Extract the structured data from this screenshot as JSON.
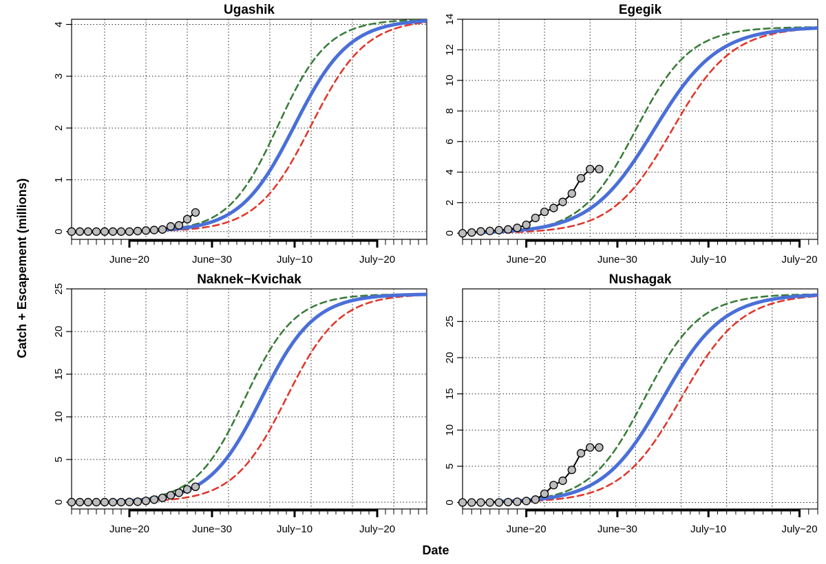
{
  "figure": {
    "ylabel": "Catch + Escapement (millions)",
    "xlabel": "Date"
  },
  "chart_data": [
    {
      "type": "line",
      "title": "Ugashik",
      "x_ticks": [
        "June−20",
        "June−30",
        "July−10",
        "July−20"
      ],
      "x_tick_dates": [
        "2023-06-20",
        "2023-06-30",
        "2023-07-10",
        "2023-07-20"
      ],
      "xlim": [
        "2023-06-13",
        "2023-07-26"
      ],
      "ylim": [
        -0.15,
        4.1
      ],
      "y_ticks": [
        0,
        1,
        2,
        3,
        4
      ],
      "grid": true,
      "curves": [
        {
          "color": "#4a6fd8",
          "style": "solid",
          "midpoint": "2023-07-10",
          "spread": 3.3,
          "final": 4.1
        },
        {
          "color": "#3a7d3a",
          "style": "dashed",
          "midpoint": "2023-07-08",
          "spread": 3.0,
          "final": 4.1
        },
        {
          "color": "#e0382c",
          "style": "dashed",
          "midpoint": "2023-07-12",
          "spread": 3.3,
          "final": 4.1
        }
      ],
      "observed": {
        "x": [
          "2023-06-13",
          "2023-06-14",
          "2023-06-15",
          "2023-06-16",
          "2023-06-17",
          "2023-06-18",
          "2023-06-19",
          "2023-06-20",
          "2023-06-21",
          "2023-06-22",
          "2023-06-23",
          "2023-06-24",
          "2023-06-25",
          "2023-06-26",
          "2023-06-27",
          "2023-06-28"
        ],
        "y": [
          0,
          0,
          0,
          0,
          0,
          0,
          0,
          0,
          0.01,
          0.02,
          0.03,
          0.04,
          0.1,
          0.12,
          0.24,
          0.37
        ]
      }
    },
    {
      "type": "line",
      "title": "Egegik",
      "x_ticks": [
        "June−20",
        "June−30",
        "July−10",
        "July−20"
      ],
      "x_tick_dates": [
        "2023-06-20",
        "2023-06-30",
        "2023-07-10",
        "2023-07-20"
      ],
      "xlim": [
        "2023-06-13",
        "2023-07-22"
      ],
      "ylim": [
        -0.4,
        14
      ],
      "y_ticks": [
        0,
        2,
        4,
        6,
        8,
        10,
        12,
        14
      ],
      "grid": true,
      "curves": [
        {
          "color": "#4a6fd8",
          "style": "solid",
          "midpoint": "2023-07-04",
          "spread": 3.5,
          "final": 13.5
        },
        {
          "color": "#3a7d3a",
          "style": "dashed",
          "midpoint": "2023-07-02",
          "spread": 3.0,
          "final": 13.5
        },
        {
          "color": "#e0382c",
          "style": "dashed",
          "midpoint": "2023-07-06",
          "spread": 3.3,
          "final": 13.5
        }
      ],
      "observed": {
        "x": [
          "2023-06-13",
          "2023-06-14",
          "2023-06-15",
          "2023-06-16",
          "2023-06-17",
          "2023-06-18",
          "2023-06-19",
          "2023-06-20",
          "2023-06-21",
          "2023-06-22",
          "2023-06-23",
          "2023-06-24",
          "2023-06-25",
          "2023-06-26",
          "2023-06-27",
          "2023-06-28"
        ],
        "y": [
          0,
          0.05,
          0.12,
          0.15,
          0.2,
          0.25,
          0.35,
          0.55,
          1.0,
          1.4,
          1.65,
          2.05,
          2.6,
          3.6,
          4.2,
          4.2
        ]
      }
    },
    {
      "type": "line",
      "title": "Naknek−Kvichak",
      "x_ticks": [
        "June−20",
        "June−30",
        "July−10",
        "July−20"
      ],
      "x_tick_dates": [
        "2023-06-20",
        "2023-06-30",
        "2023-07-10",
        "2023-07-20"
      ],
      "xlim": [
        "2023-06-13",
        "2023-07-26"
      ],
      "ylim": [
        -0.8,
        25
      ],
      "y_ticks": [
        0,
        5,
        10,
        15,
        20,
        25
      ],
      "grid": true,
      "curves": [
        {
          "color": "#4a6fd8",
          "style": "solid",
          "midpoint": "2023-07-06",
          "spread": 3.2,
          "final": 24.4
        },
        {
          "color": "#3a7d3a",
          "style": "dashed",
          "midpoint": "2023-07-04",
          "spread": 3.0,
          "final": 24.4
        },
        {
          "color": "#e0382c",
          "style": "dashed",
          "midpoint": "2023-07-09",
          "spread": 3.2,
          "final": 24.4
        }
      ],
      "observed": {
        "x": [
          "2023-06-13",
          "2023-06-14",
          "2023-06-15",
          "2023-06-16",
          "2023-06-17",
          "2023-06-18",
          "2023-06-19",
          "2023-06-20",
          "2023-06-21",
          "2023-06-22",
          "2023-06-23",
          "2023-06-24",
          "2023-06-25",
          "2023-06-26",
          "2023-06-27",
          "2023-06-28"
        ],
        "y": [
          0,
          0,
          0,
          0,
          0,
          0,
          0,
          0.02,
          0.05,
          0.15,
          0.3,
          0.5,
          0.8,
          1.1,
          1.5,
          1.8
        ]
      }
    },
    {
      "type": "line",
      "title": "Nushagak",
      "x_ticks": [
        "June−20",
        "June−30",
        "July−10",
        "July−20"
      ],
      "x_tick_dates": [
        "2023-06-20",
        "2023-06-30",
        "2023-07-10",
        "2023-07-20"
      ],
      "xlim": [
        "2023-06-13",
        "2023-07-22"
      ],
      "ylim": [
        -0.9,
        29.5
      ],
      "y_ticks": [
        0,
        5,
        10,
        15,
        20,
        25
      ],
      "grid": true,
      "curves": [
        {
          "color": "#4a6fd8",
          "style": "solid",
          "midpoint": "2023-07-05",
          "spread": 3.3,
          "final": 28.8
        },
        {
          "color": "#3a7d3a",
          "style": "dashed",
          "midpoint": "2023-07-03",
          "spread": 3.0,
          "final": 28.8
        },
        {
          "color": "#e0382c",
          "style": "dashed",
          "midpoint": "2023-07-07",
          "spread": 3.3,
          "final": 28.8
        }
      ],
      "observed": {
        "x": [
          "2023-06-13",
          "2023-06-14",
          "2023-06-15",
          "2023-06-16",
          "2023-06-17",
          "2023-06-18",
          "2023-06-19",
          "2023-06-20",
          "2023-06-21",
          "2023-06-22",
          "2023-06-23",
          "2023-06-24",
          "2023-06-25",
          "2023-06-26",
          "2023-06-27",
          "2023-06-28"
        ],
        "y": [
          0,
          0,
          0,
          0,
          0,
          0.05,
          0.1,
          0.2,
          0.4,
          1.2,
          2.4,
          3.0,
          4.5,
          6.8,
          7.6,
          7.6
        ]
      }
    }
  ]
}
